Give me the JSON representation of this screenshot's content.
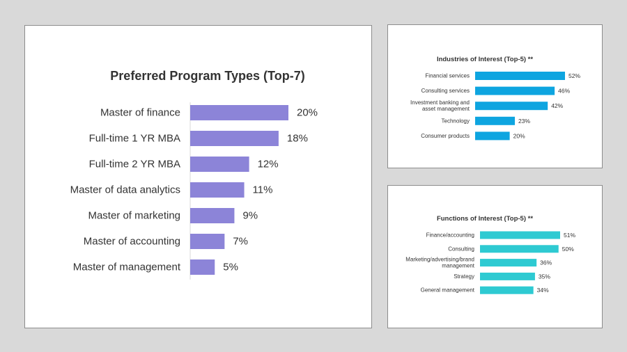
{
  "chart_data": [
    {
      "type": "bar",
      "orientation": "horizontal",
      "title": "Preferred Program Types (Top-7)",
      "categories": [
        "Master of finance",
        "Full-time 1 YR MBA",
        "Full-time 2 YR MBA",
        "Master of data analytics",
        "Master of marketing",
        "Master of accounting",
        "Master of management"
      ],
      "values": [
        20,
        18,
        12,
        11,
        9,
        7,
        5
      ],
      "labels": [
        "20%",
        "18%",
        "12%",
        "11%",
        "9%",
        "7%",
        "5%"
      ],
      "unit": "%",
      "color": "#8c84d8",
      "xlim": [
        0,
        20
      ],
      "grid": false
    },
    {
      "type": "bar",
      "orientation": "horizontal",
      "title": "Industries of Interest (Top-5) **",
      "categories": [
        [
          "Financial services"
        ],
        [
          "Consulting services"
        ],
        [
          "Investment banking and",
          "asset management"
        ],
        [
          "Technology"
        ],
        [
          "Consumer products"
        ]
      ],
      "values": [
        52,
        46,
        42,
        23,
        20
      ],
      "labels": [
        "52%",
        "46%",
        "42%",
        "23%",
        "20%"
      ],
      "unit": "%",
      "color": "#0ea5e0",
      "xlim": [
        0,
        52
      ],
      "grid": false
    },
    {
      "type": "bar",
      "orientation": "horizontal",
      "title": "Functions of Interest (Top-5) **",
      "categories": [
        [
          "Finance/accounting"
        ],
        [
          "Consulting"
        ],
        [
          "Marketing/advertising/brand",
          "management"
        ],
        [
          "Strategy"
        ],
        [
          "General management"
        ]
      ],
      "values": [
        51,
        50,
        36,
        35,
        34
      ],
      "labels": [
        "51%",
        "50%",
        "36%",
        "35%",
        "34%"
      ],
      "unit": "%",
      "color": "#2ecad2",
      "xlim": [
        0,
        51
      ],
      "grid": false
    }
  ]
}
